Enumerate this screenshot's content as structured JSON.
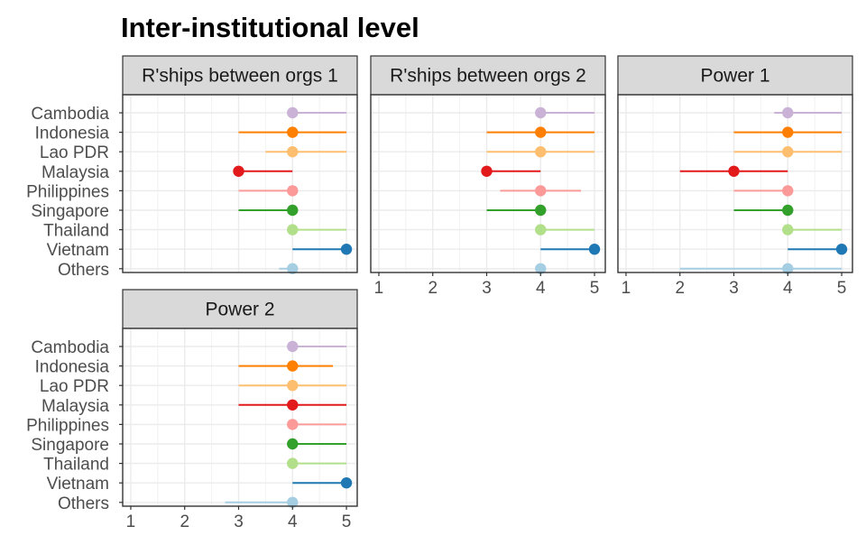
{
  "chart_data": {
    "type": "dot-range",
    "title": "Inter-institutional level",
    "categories": [
      "Cambodia",
      "Indonesia",
      "Lao PDR",
      "Malaysia",
      "Philippines",
      "Singapore",
      "Thailand",
      "Vietnam",
      "Others"
    ],
    "colors": {
      "Cambodia": "#CAB2D6",
      "Indonesia": "#FF7F00",
      "Lao PDR": "#FDBF6F",
      "Malaysia": "#E31A1C",
      "Philippines": "#FB9A99",
      "Singapore": "#33A02C",
      "Thailand": "#B2DF8A",
      "Vietnam": "#1F78B4",
      "Others": "#A6CEE3"
    },
    "xlim": [
      0.85,
      5.2
    ],
    "x_ticks": [
      "1",
      "2",
      "3",
      "4",
      "5"
    ],
    "grid": true,
    "facets": [
      {
        "label": "R'ships between orgs 1",
        "points": [
          {
            "country": "Cambodia",
            "value": 4,
            "low": 4,
            "high": 5
          },
          {
            "country": "Indonesia",
            "value": 4,
            "low": 3,
            "high": 5
          },
          {
            "country": "Lao PDR",
            "value": 4,
            "low": 3.5,
            "high": 5
          },
          {
            "country": "Malaysia",
            "value": 3,
            "low": 3,
            "high": 4
          },
          {
            "country": "Philippines",
            "value": 4,
            "low": 3,
            "high": 4
          },
          {
            "country": "Singapore",
            "value": 4,
            "low": 3,
            "high": 4
          },
          {
            "country": "Thailand",
            "value": 4,
            "low": 4,
            "high": 5
          },
          {
            "country": "Vietnam",
            "value": 5,
            "low": 4,
            "high": 5
          },
          {
            "country": "Others",
            "value": 4,
            "low": 3.75,
            "high": 4.1
          }
        ]
      },
      {
        "label": "R'ships between orgs 2",
        "points": [
          {
            "country": "Cambodia",
            "value": 4,
            "low": 4,
            "high": 5
          },
          {
            "country": "Indonesia",
            "value": 4,
            "low": 3,
            "high": 5
          },
          {
            "country": "Lao PDR",
            "value": 4,
            "low": 3,
            "high": 5
          },
          {
            "country": "Malaysia",
            "value": 3,
            "low": 3,
            "high": 4
          },
          {
            "country": "Philippines",
            "value": 4,
            "low": 3.25,
            "high": 4.75
          },
          {
            "country": "Singapore",
            "value": 4,
            "low": 3,
            "high": 4
          },
          {
            "country": "Thailand",
            "value": 4,
            "low": 4,
            "high": 5
          },
          {
            "country": "Vietnam",
            "value": 5,
            "low": 4,
            "high": 5
          },
          {
            "country": "Others",
            "value": 4,
            "low": 4,
            "high": 4
          }
        ]
      },
      {
        "label": "Power 1",
        "points": [
          {
            "country": "Cambodia",
            "value": 4,
            "low": 3.75,
            "high": 5
          },
          {
            "country": "Indonesia",
            "value": 4,
            "low": 3,
            "high": 5
          },
          {
            "country": "Lao PDR",
            "value": 4,
            "low": 3,
            "high": 5
          },
          {
            "country": "Malaysia",
            "value": 3,
            "low": 2,
            "high": 4
          },
          {
            "country": "Philippines",
            "value": 4,
            "low": 3,
            "high": 4
          },
          {
            "country": "Singapore",
            "value": 4,
            "low": 3,
            "high": 4
          },
          {
            "country": "Thailand",
            "value": 4,
            "low": 4,
            "high": 5
          },
          {
            "country": "Vietnam",
            "value": 5,
            "low": 4,
            "high": 5
          },
          {
            "country": "Others",
            "value": 4,
            "low": 2,
            "high": 5
          }
        ]
      },
      {
        "label": "Power 2",
        "points": [
          {
            "country": "Cambodia",
            "value": 4,
            "low": 4,
            "high": 5
          },
          {
            "country": "Indonesia",
            "value": 4,
            "low": 3,
            "high": 4.75
          },
          {
            "country": "Lao PDR",
            "value": 4,
            "low": 3,
            "high": 5
          },
          {
            "country": "Malaysia",
            "value": 4,
            "low": 3,
            "high": 5
          },
          {
            "country": "Philippines",
            "value": 4,
            "low": 4,
            "high": 5
          },
          {
            "country": "Singapore",
            "value": 4,
            "low": 4,
            "high": 5
          },
          {
            "country": "Thailand",
            "value": 4,
            "low": 4,
            "high": 5
          },
          {
            "country": "Vietnam",
            "value": 5,
            "low": 4,
            "high": 5
          },
          {
            "country": "Others",
            "value": 4,
            "low": 2.75,
            "high": 4
          }
        ]
      }
    ]
  }
}
